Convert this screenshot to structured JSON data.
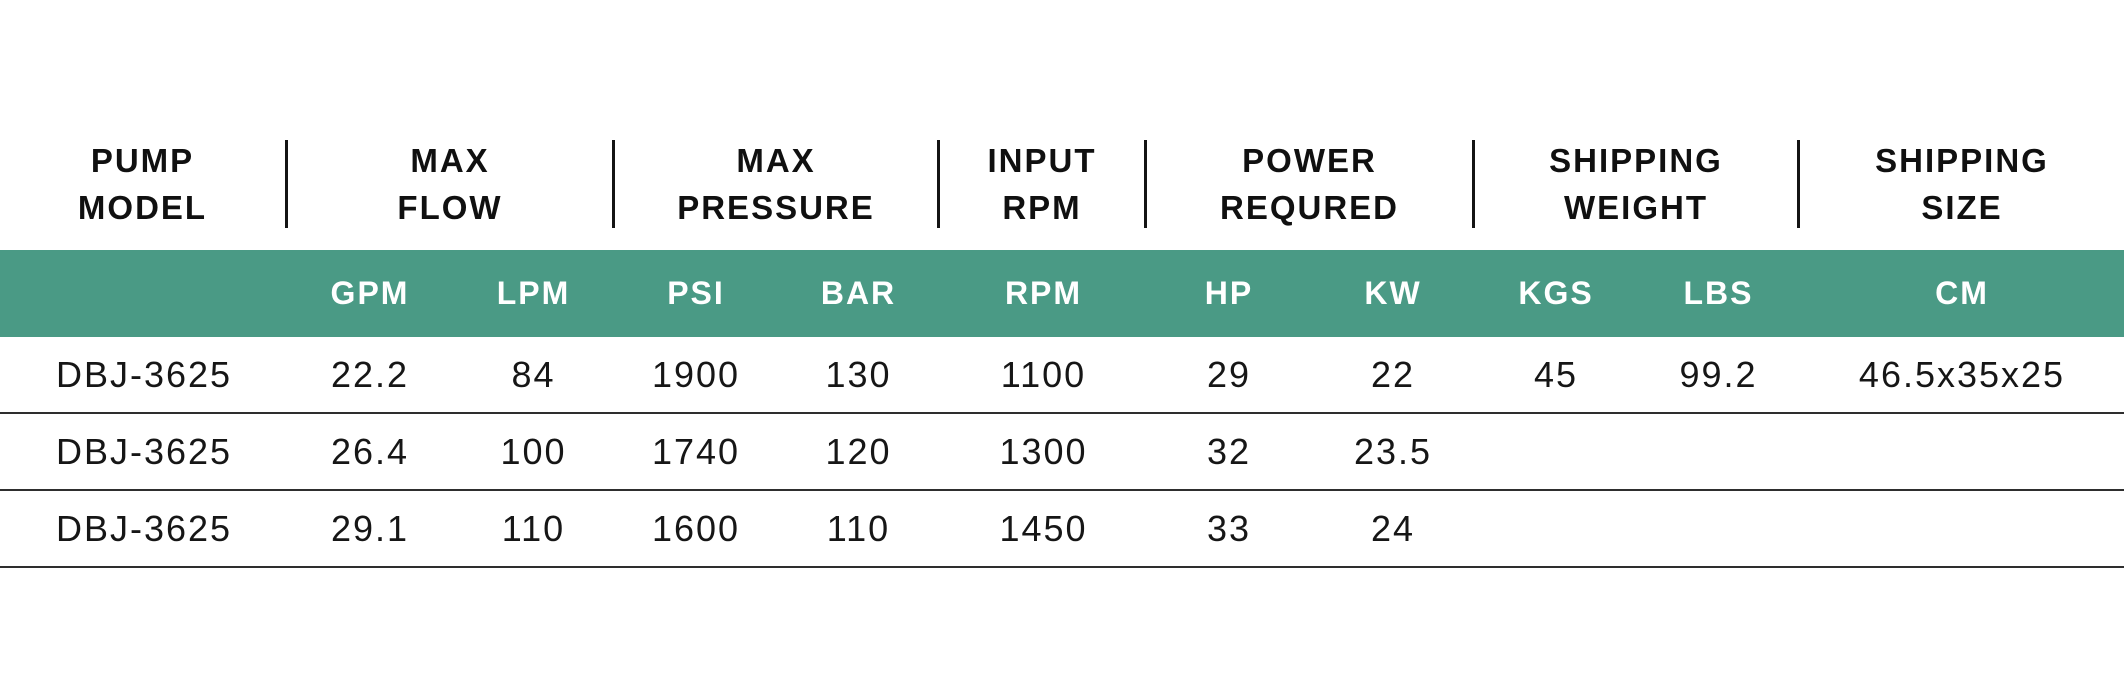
{
  "colors": {
    "accent_green": "#4a9a85",
    "header_text": "#101010",
    "body_text": "#161616",
    "row_line": "#2e2e2e"
  },
  "chart_data": {
    "type": "table",
    "group_headers": [
      {
        "line1": "PUMP",
        "line2": "MODEL"
      },
      {
        "line1": "MAX",
        "line2": "FLOW"
      },
      {
        "line1": "MAX",
        "line2": "PRESSURE"
      },
      {
        "line1": "INPUT",
        "line2": "RPM"
      },
      {
        "line1": "POWER",
        "line2": "REQURED"
      },
      {
        "line1": "SHIPPING",
        "line2": "WEIGHT"
      },
      {
        "line1": "SHIPPING",
        "line2": "SIZE"
      }
    ],
    "unit_row": [
      "",
      "GPM",
      "LPM",
      "PSI",
      "BAR",
      "RPM",
      "HP",
      "KW",
      "KGS",
      "LBS",
      "CM"
    ],
    "rows": [
      [
        "DBJ-3625",
        "22.2",
        "84",
        "1900",
        "130",
        "1100",
        "29",
        "22",
        "45",
        "99.2",
        "46.5x35x25"
      ],
      [
        "DBJ-3625",
        "26.4",
        "100",
        "1740",
        "120",
        "1300",
        "32",
        "23.5",
        "",
        "",
        ""
      ],
      [
        "DBJ-3625",
        "29.1",
        "110",
        "1600",
        "110",
        "1450",
        "33",
        "24",
        "",
        "",
        ""
      ]
    ]
  }
}
